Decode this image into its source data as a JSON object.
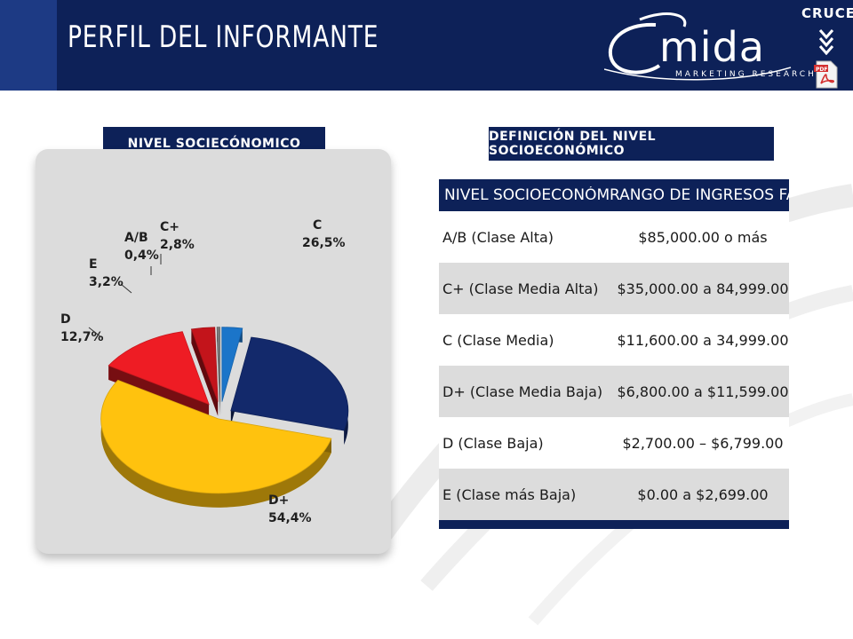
{
  "header": {
    "title": "PERFIL DEL INFORMANTE",
    "logo_name": "mida",
    "logo_subtitle": "MARKETING RESEARCH",
    "cruces_label": "CRUCES"
  },
  "sections": {
    "left_label": "NIVEL SOCIECÓNOMICO",
    "right_label": "DEFINICIÓN DEL NIVEL SOCIOECONÓMICO"
  },
  "colors": {
    "navy": "#0d2158",
    "C": "#13296b",
    "D+": "#ffc20e",
    "D": "#ee1c24",
    "E": "#c3141b",
    "A/B": "#7a7a7a",
    "C+": "#1b75c9"
  },
  "icons": [
    "chevron-double-down-icon",
    "pdf-icon"
  ],
  "chart_data": {
    "type": "pie",
    "style": "3d-exploded",
    "slices": [
      {
        "label": "C",
        "value": 26.5,
        "value_label": "26,5%"
      },
      {
        "label": "D+",
        "value": 54.4,
        "value_label": "54,4%"
      },
      {
        "label": "D",
        "value": 12.7,
        "value_label": "12,7%"
      },
      {
        "label": "E",
        "value": 3.2,
        "value_label": "3,2%"
      },
      {
        "label": "A/B",
        "value": 0.4,
        "value_label": "0,4%"
      },
      {
        "label": "C+",
        "value": 2.8,
        "value_label": "2,8%"
      }
    ]
  },
  "table": {
    "headers": [
      "NIVEL SOCIOECONÓMICO",
      "RANGO DE INGRESOS FAMILIAR"
    ],
    "rows": [
      {
        "level": "A/B (Clase Alta)",
        "range": "$85,000.00 o más"
      },
      {
        "level": "C+ (Clase Media Alta)",
        "range": "$35,000.00 a 84,999.00"
      },
      {
        "level": "C (Clase Media)",
        "range": "$11,600.00 a 34,999.00"
      },
      {
        "level": "D+ (Clase Media Baja)",
        "range": "$6,800.00 a $11,599.00"
      },
      {
        "level": "D (Clase Baja)",
        "range": "$2,700.00 – $6,799.00"
      },
      {
        "level": "E (Clase más Baja)",
        "range": "$0.00 a $2,699.00"
      }
    ]
  }
}
